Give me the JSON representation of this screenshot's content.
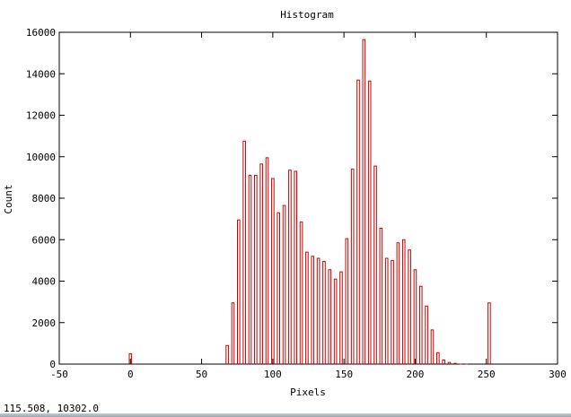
{
  "chart_data": {
    "type": "bar",
    "title": "Histogram",
    "xlabel": "Pixels",
    "ylabel": "Count",
    "xlim": [
      -50,
      300
    ],
    "ylim": [
      0,
      16000
    ],
    "xticks": [
      -50,
      0,
      50,
      100,
      150,
      200,
      250,
      300
    ],
    "yticks": [
      0,
      2000,
      4000,
      6000,
      8000,
      10000,
      12000,
      14000,
      16000
    ],
    "grid": false,
    "bar_color": "#cc0000",
    "x": [
      0,
      68,
      72,
      76,
      80,
      84,
      88,
      92,
      96,
      100,
      104,
      108,
      112,
      116,
      120,
      124,
      128,
      132,
      136,
      140,
      144,
      148,
      152,
      156,
      160,
      164,
      168,
      172,
      176,
      180,
      184,
      188,
      192,
      196,
      200,
      204,
      208,
      212,
      216,
      220,
      224,
      228,
      232,
      236,
      252
    ],
    "values": [
      500,
      900,
      2950,
      6950,
      10750,
      9100,
      9100,
      9650,
      9950,
      8950,
      7300,
      7650,
      9350,
      9300,
      6850,
      5400,
      5200,
      5100,
      4950,
      4550,
      4100,
      4450,
      6050,
      9400,
      13700,
      15650,
      13650,
      9550,
      6550,
      5100,
      5000,
      5850,
      6000,
      5500,
      4550,
      3750,
      2800,
      1650,
      550,
      200,
      80,
      30,
      0,
      0,
      2950
    ]
  },
  "status": {
    "coordinates": "115.508,  10302.0"
  }
}
